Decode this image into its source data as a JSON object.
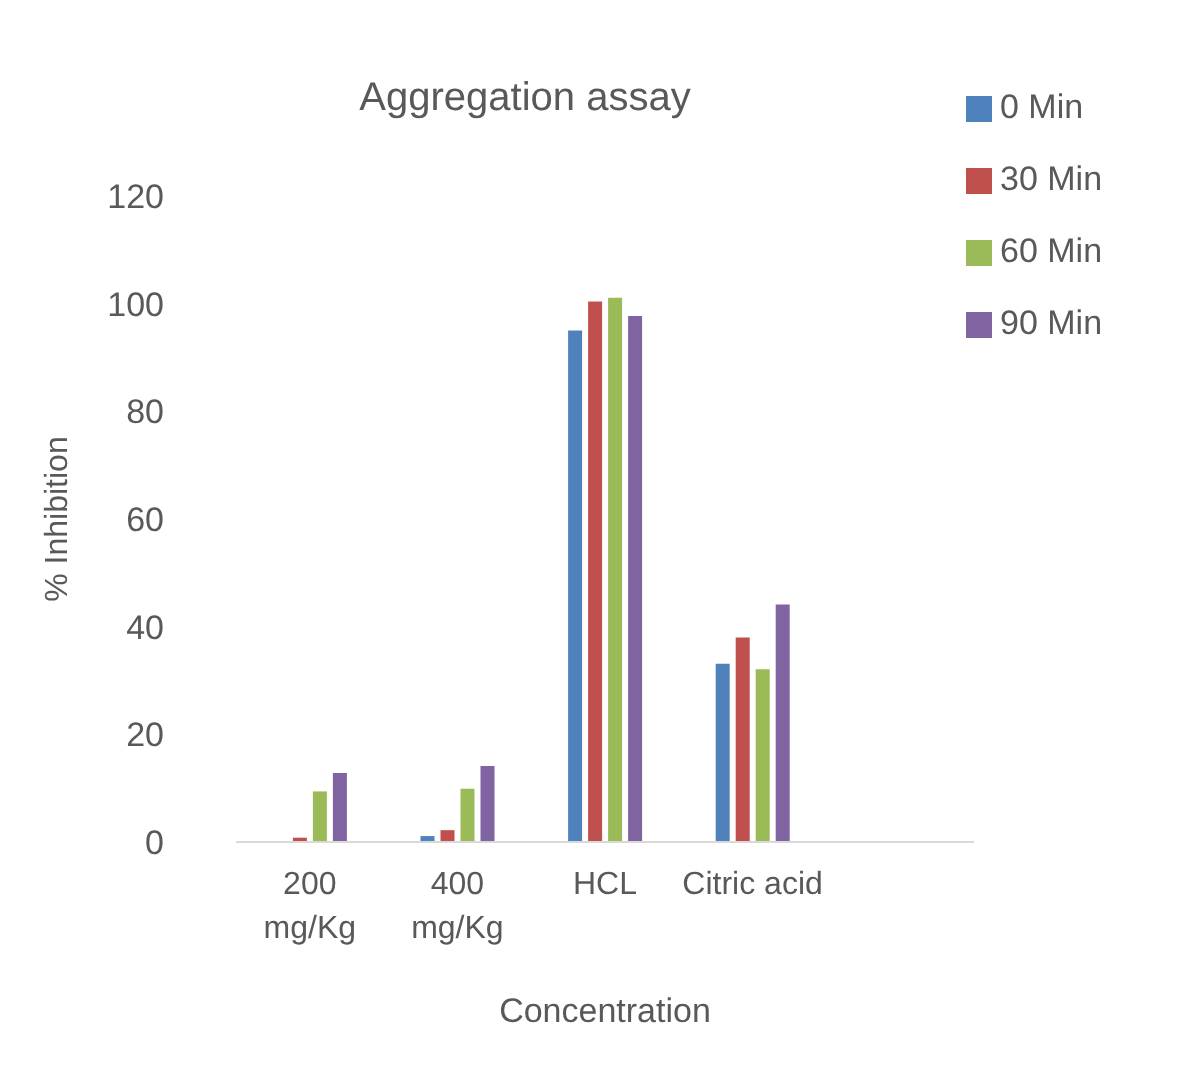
{
  "chart_data": {
    "type": "bar",
    "title": "Aggregation assay",
    "xlabel": "Concentration",
    "ylabel": "% Inhibition",
    "categories": [
      "200\nmg/Kg",
      "400\nmg/Kg",
      "HCL",
      "Citric acid",
      null
    ],
    "series": [
      {
        "name": "0 Min",
        "color": "#4f81bd",
        "values": [
          0,
          1.1,
          95,
          33.1,
          null
        ]
      },
      {
        "name": "30 Min",
        "color": "#c0504d",
        "values": [
          0.8,
          2.2,
          100.4,
          38,
          null
        ]
      },
      {
        "name": "60 Min",
        "color": "#9bbb59",
        "values": [
          9.4,
          9.9,
          101.1,
          32.1,
          null
        ]
      },
      {
        "name": "90 Min",
        "color": "#8064a2",
        "values": [
          12.8,
          14.1,
          97.7,
          44.1,
          null
        ]
      }
    ],
    "ylim": [
      0,
      120
    ],
    "yticks": [
      0,
      20,
      40,
      60,
      80,
      100,
      120
    ],
    "grid": false,
    "legend": "top right"
  }
}
